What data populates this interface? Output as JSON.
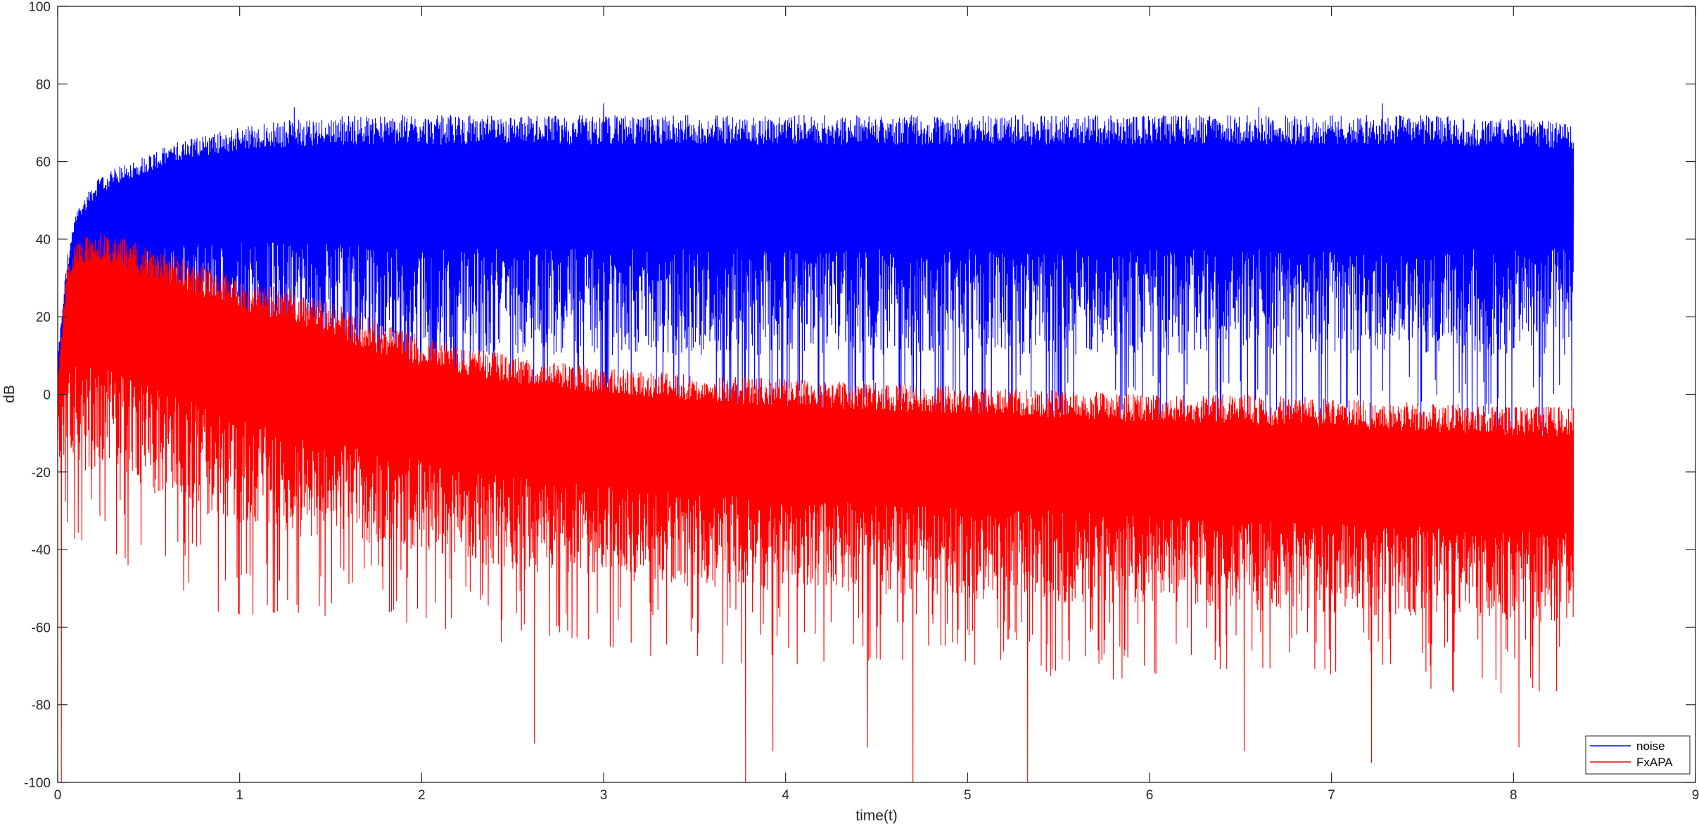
{
  "chart_data": {
    "type": "line",
    "title": "",
    "xlabel": "time(t)",
    "ylabel": "dB",
    "xlim": [
      0,
      9
    ],
    "ylim": [
      -100,
      100
    ],
    "xticks": [
      "0",
      "1",
      "2",
      "3",
      "4",
      "5",
      "6",
      "7",
      "8",
      "9"
    ],
    "yticks": [
      "100",
      "80",
      "60",
      "40",
      "20",
      "0",
      "-20",
      "-40",
      "-60",
      "-80",
      "-100"
    ],
    "grid": false,
    "legend_position": "bottom-right",
    "data_end_time": 8.33,
    "series": [
      {
        "name": "noise",
        "color": "#0000ff",
        "envelope": {
          "x": [
            0.0,
            0.05,
            0.1,
            0.2,
            0.3,
            0.5,
            0.7,
            1.0,
            1.3,
            1.6,
            2.0,
            2.5,
            3.0,
            3.5,
            4.0,
            4.5,
            5.0,
            5.5,
            6.0,
            6.5,
            7.0,
            7.5,
            8.0,
            8.33
          ],
          "upper": [
            10,
            35,
            47,
            55,
            58,
            62,
            66,
            69,
            71,
            72,
            72,
            72,
            72,
            72,
            72,
            72,
            72,
            72,
            72,
            72,
            72,
            72,
            71,
            70
          ],
          "center": [
            5,
            25,
            40,
            45,
            48,
            52,
            54,
            55,
            55,
            55,
            55,
            55,
            55,
            55,
            55,
            55,
            55,
            55,
            55,
            55,
            55,
            55,
            55,
            55
          ],
          "lower": [
            -5,
            5,
            15,
            15,
            15,
            10,
            10,
            10,
            10,
            8,
            5,
            5,
            5,
            5,
            5,
            5,
            5,
            5,
            5,
            5,
            5,
            5,
            5,
            5
          ]
        },
        "peaks": [
          {
            "x": 3.0,
            "y": 75
          },
          {
            "x": 7.28,
            "y": 75
          },
          {
            "x": 6.6,
            "y": 74
          },
          {
            "x": 1.3,
            "y": 74
          }
        ]
      },
      {
        "name": "FxAPA",
        "color": "#ff0000",
        "envelope": {
          "x": [
            0.0,
            0.05,
            0.1,
            0.2,
            0.3,
            0.5,
            0.7,
            1.0,
            1.3,
            1.6,
            2.0,
            2.5,
            3.0,
            3.5,
            4.0,
            4.5,
            5.0,
            5.5,
            6.0,
            6.5,
            7.0,
            7.5,
            8.0,
            8.33
          ],
          "upper": [
            5,
            32,
            40,
            42,
            41,
            38,
            35,
            30,
            27,
            22,
            15,
            10,
            7,
            5,
            4,
            3,
            2,
            1,
            0,
            0,
            -1,
            -2,
            -3,
            -3
          ],
          "center": [
            0,
            20,
            25,
            25,
            23,
            20,
            17,
            12,
            7,
            2,
            -2,
            -6,
            -8,
            -10,
            -12,
            -13,
            -14,
            -15,
            -16,
            -17,
            -18,
            -19,
            -20,
            -21
          ],
          "lower": [
            -20,
            -20,
            -25,
            -25,
            -25,
            -30,
            -35,
            -40,
            -42,
            -42,
            -45,
            -50,
            -52,
            -54,
            -55,
            -56,
            -57,
            -58,
            -59,
            -60,
            -61,
            -62,
            -63,
            -63
          ]
        },
        "dips": [
          {
            "x": 0.02,
            "y": -100
          },
          {
            "x": 3.78,
            "y": -100
          },
          {
            "x": 4.7,
            "y": -100
          },
          {
            "x": 5.33,
            "y": -100
          },
          {
            "x": 2.62,
            "y": -90
          },
          {
            "x": 3.93,
            "y": -92
          },
          {
            "x": 4.45,
            "y": -91
          },
          {
            "x": 6.52,
            "y": -92
          },
          {
            "x": 7.22,
            "y": -95
          },
          {
            "x": 8.03,
            "y": -91
          }
        ]
      }
    ]
  }
}
